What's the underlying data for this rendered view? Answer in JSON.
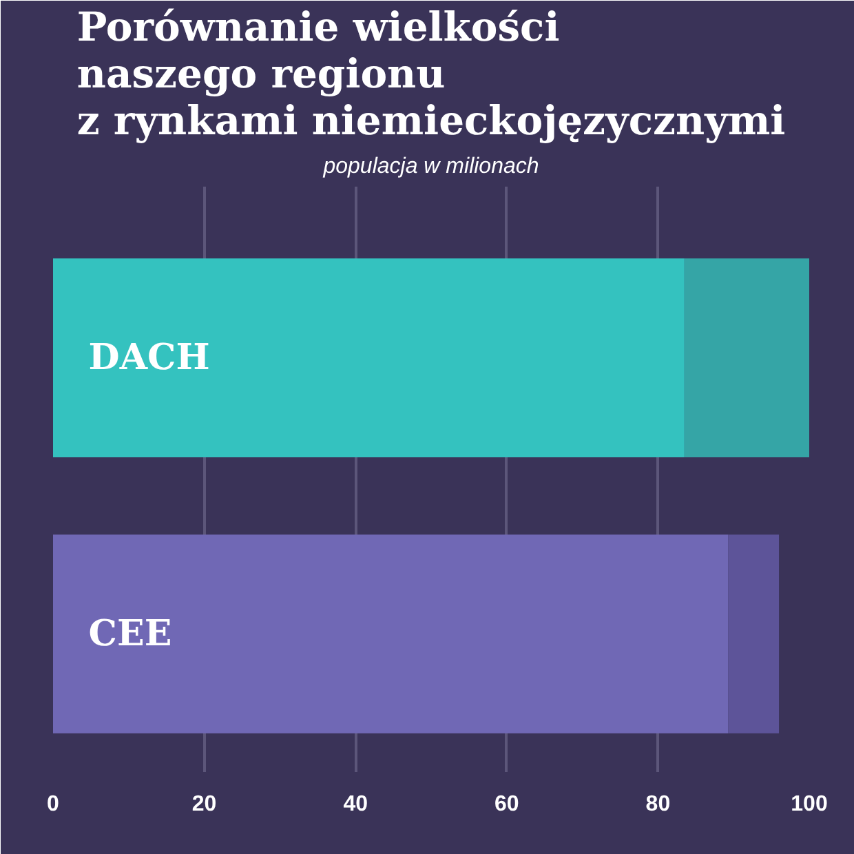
{
  "chart_data": {
    "type": "bar",
    "orientation": "horizontal",
    "stacked": true,
    "title": "Porównanie wielkości\nnaszego regionu\nz rynkami niemieckojęzycznymi",
    "subtitle": "populacja w milionach",
    "categories": [
      "DACH",
      "CEE"
    ],
    "series": [
      {
        "colors": [
          "#34c2bf",
          "#7068b5"
        ],
        "values": [
          83.5,
          89.3
        ]
      },
      {
        "colors": [
          "#35a5a6",
          "#5d5499"
        ],
        "values": [
          16.5,
          6.7
        ]
      }
    ],
    "xlim": [
      0,
      100
    ],
    "xticks": [
      0,
      20,
      40,
      60,
      80,
      100
    ],
    "grid": "x"
  }
}
